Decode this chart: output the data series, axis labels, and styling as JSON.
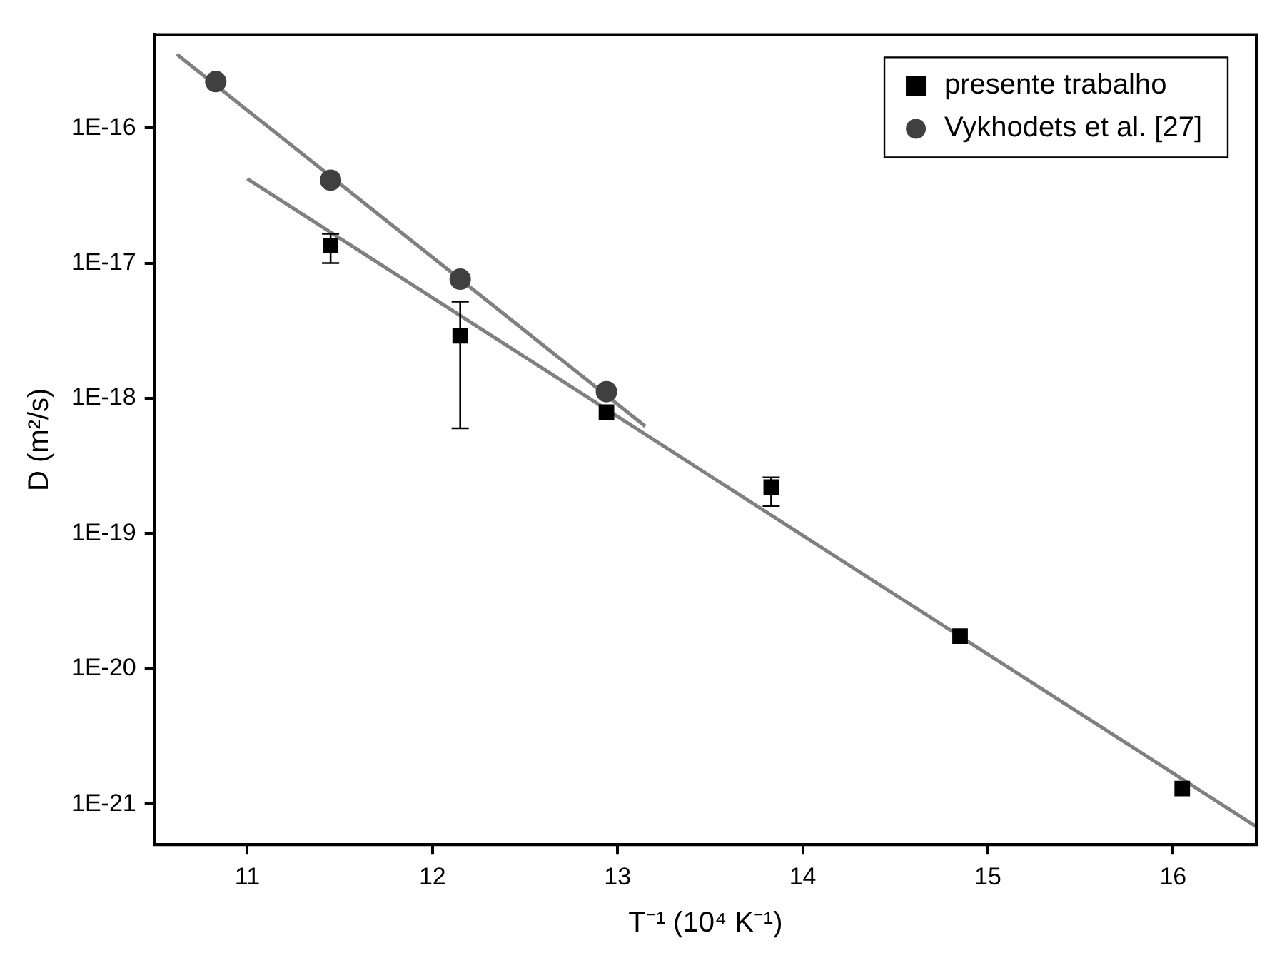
{
  "chart_data": {
    "type": "scatter",
    "xlabel": "T⁻¹ (10⁴ K⁻¹)",
    "ylabel": "D (m²/s)",
    "xlim": [
      10.5,
      16.45
    ],
    "xticks": [
      11,
      12,
      13,
      14,
      15,
      16
    ],
    "ylim": [
      5.3e-22,
      4.9e-16
    ],
    "log": "y",
    "yticks": [
      {
        "value": 1e-21,
        "label": "1E-21"
      },
      {
        "value": 1e-20,
        "label": "1E-20"
      },
      {
        "value": 1e-19,
        "label": "1E-19"
      },
      {
        "value": 1e-18,
        "label": "1E-18"
      },
      {
        "value": 1e-17,
        "label": "1E-17"
      },
      {
        "value": 1e-16,
        "label": "1E-16"
      }
    ],
    "legend": "top right",
    "series": [
      {
        "name": "presente trabalho",
        "type": "scatter",
        "marker": "square",
        "color": "#000000",
        "x": [
          11.45,
          12.15,
          12.94,
          13.83,
          14.85,
          16.05
        ],
        "values": [
          1.35e-17,
          2.9e-18,
          7.9e-19,
          2.2e-19,
          1.74e-20,
          1.3e-21
        ],
        "errors": [
          [
            1e-17,
            1.65e-17
          ],
          [
            6e-19,
            5.2e-18
          ],
          null,
          [
            1.6e-19,
            2.6e-19
          ],
          null,
          null
        ]
      },
      {
        "name": "Vykhodets et al. [27]",
        "type": "scatter",
        "marker": "circle",
        "color": "#404040",
        "x": [
          10.83,
          11.45,
          12.15,
          12.94
        ],
        "values": [
          2.2e-16,
          4.1e-17,
          7.6e-18,
          1.12e-18
        ]
      },
      {
        "type": "line",
        "marker": "none",
        "color": "#808080",
        "x": [
          10.62,
          13.15
        ],
        "values": [
          3.5e-16,
          6.2e-19
        ]
      },
      {
        "type": "line",
        "marker": "none",
        "color": "#808080",
        "x": [
          11.0,
          16.45
        ],
        "values": [
          4.2e-17,
          6.8e-22
        ]
      }
    ]
  }
}
